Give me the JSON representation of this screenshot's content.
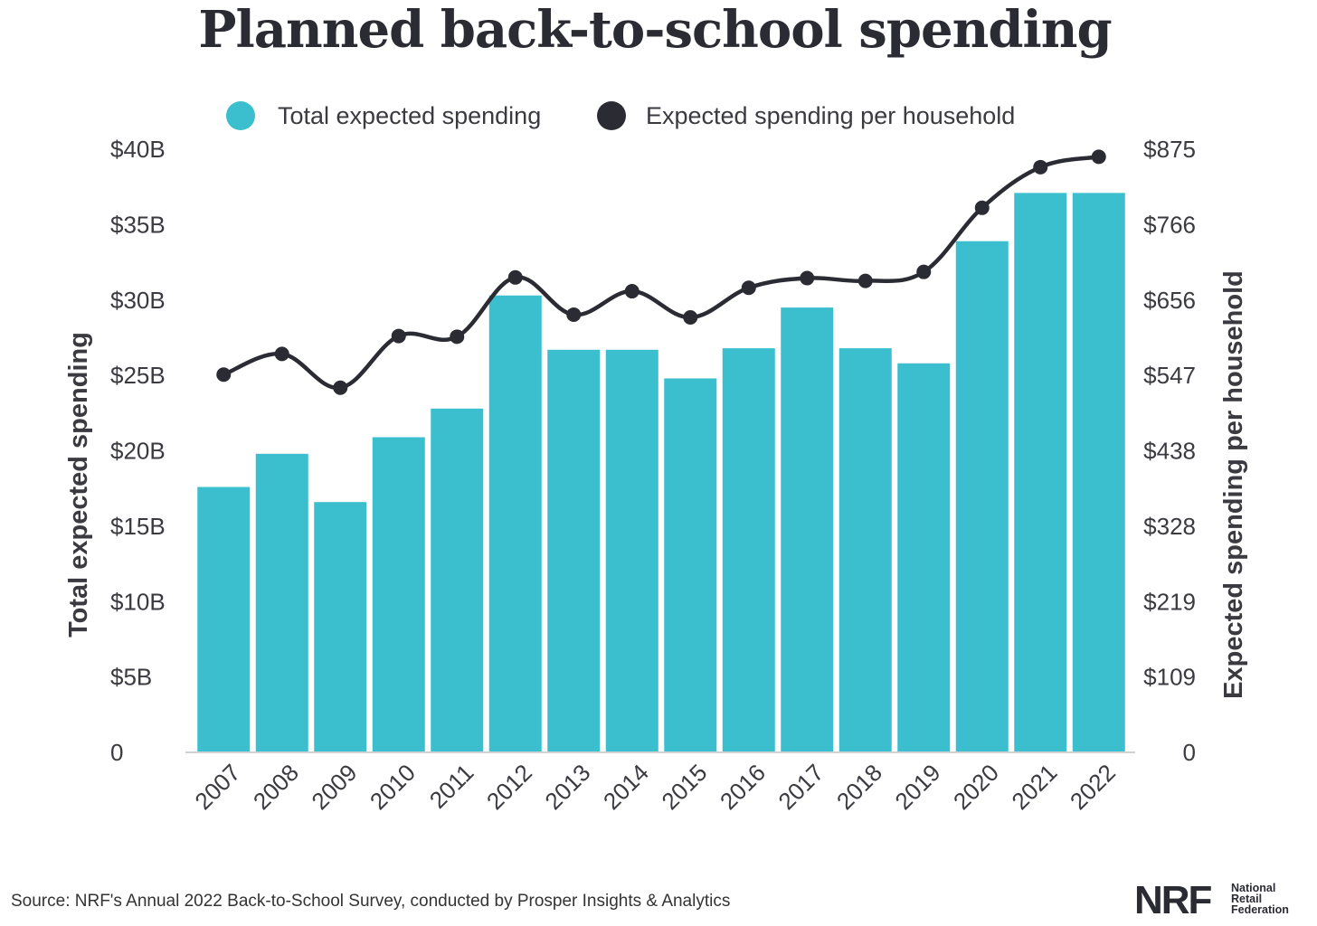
{
  "colors": {
    "bar": "#3bbfcf",
    "line": "#2b2b33",
    "axis": "#cfd3d6",
    "text": "#3a3a40"
  },
  "chart_data": {
    "type": "bar",
    "title": "Planned back-to-school spending",
    "categories": [
      "2007",
      "2008",
      "2009",
      "2010",
      "2011",
      "2012",
      "2013",
      "2014",
      "2015",
      "2016",
      "2017",
      "2018",
      "2019",
      "2020",
      "2021",
      "2022"
    ],
    "series": [
      {
        "name": "Total expected spending",
        "type": "bar",
        "axis": "left",
        "values": [
          17.6,
          19.8,
          16.6,
          20.9,
          22.8,
          30.3,
          26.7,
          26.7,
          24.8,
          26.8,
          29.5,
          26.8,
          25.8,
          33.9,
          37.1,
          37.1
        ]
      },
      {
        "name": "Expected spending per household",
        "type": "line",
        "axis": "right",
        "values": [
          548,
          578,
          529,
          604,
          603,
          689,
          635,
          669,
          631,
          674,
          688,
          684,
          697,
          790,
          849,
          864
        ]
      }
    ],
    "ylabel": "Total expected spending",
    "y2label": "Expected spending per household",
    "ylim": [
      0,
      40
    ],
    "y2lim": [
      0,
      875
    ],
    "yticks": [
      "0",
      "$5B",
      "$10B",
      "$15B",
      "$20B",
      "$25B",
      "$30B",
      "$35B",
      "$40B"
    ],
    "y2ticks": [
      "0",
      "$109",
      "$219",
      "$328",
      "$438",
      "$547",
      "$656",
      "$766",
      "$875"
    ],
    "legend_position": "top-center",
    "grid": false
  },
  "footer": {
    "source": "Source: NRF's Annual 2022 Back-to-School Survey, conducted by Prosper Insights & Analytics",
    "logo_mark": "NRF",
    "logo_line1": "National",
    "logo_line2": "Retail",
    "logo_line3": "Federation"
  }
}
